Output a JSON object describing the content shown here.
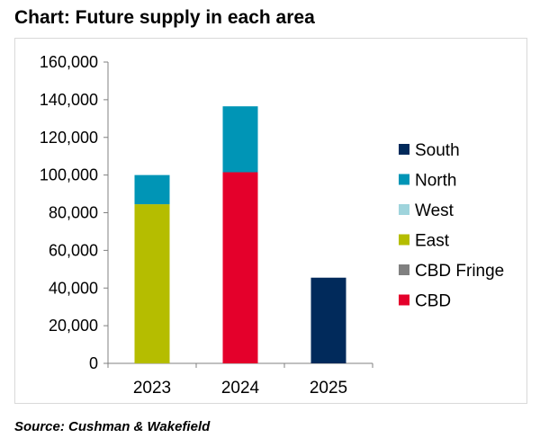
{
  "chart_data": {
    "type": "bar",
    "stacked": true,
    "title": "Chart: Future supply in each area",
    "categories": [
      "2023",
      "2024",
      "2025"
    ],
    "series": [
      {
        "name": "CBD",
        "color": "#e4002b",
        "values": [
          0,
          101500,
          0
        ]
      },
      {
        "name": "CBD Fringe",
        "color": "#808080",
        "values": [
          0,
          0,
          0
        ]
      },
      {
        "name": "East",
        "color": "#b5bd00",
        "values": [
          84500,
          0,
          0
        ]
      },
      {
        "name": "West",
        "color": "#9fd4dc",
        "values": [
          0,
          0,
          0
        ]
      },
      {
        "name": "North",
        "color": "#0095b6",
        "values": [
          15500,
          35000,
          0
        ]
      },
      {
        "name": "South",
        "color": "#012a5b",
        "values": [
          0,
          0,
          45500
        ]
      }
    ],
    "legend_order": [
      "South",
      "North",
      "West",
      "East",
      "CBD Fringe",
      "CBD"
    ],
    "ylim": [
      0,
      160000
    ],
    "yticks": [
      "0",
      "20,000",
      "40,000",
      "60,000",
      "80,000",
      "100,000",
      "120,000",
      "140,000",
      "160,000"
    ],
    "ytick_values": [
      0,
      20000,
      40000,
      60000,
      80000,
      100000,
      120000,
      140000,
      160000
    ],
    "xlabel": "",
    "ylabel": "",
    "grid": false,
    "legend_position": "right"
  },
  "source": "Source: Cushman & Wakefield"
}
